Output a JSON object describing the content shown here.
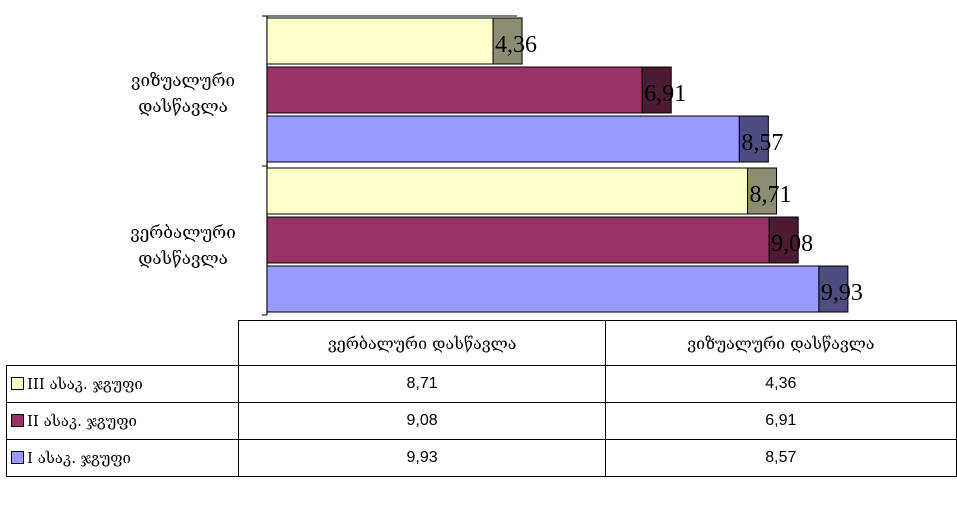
{
  "chart_data": {
    "type": "bar",
    "orientation": "horizontal",
    "categories": [
      "ვიზუალური დასწავლა",
      "ვერბალური დასწავლა"
    ],
    "category_labels": [
      {
        "line1": "ვიზუალური",
        "line2": "დასწავლა"
      },
      {
        "line1": "ვერბალური",
        "line2": "დასწავლა"
      }
    ],
    "series": [
      {
        "name": "III ასაკ. ჯგუფი",
        "values": [
          4.36,
          8.71
        ],
        "labels": [
          "4,36",
          "8,71"
        ],
        "color": "#FFFFCC",
        "side_color": "#8C8C72"
      },
      {
        "name": "II ასაკ. ჯგუფი",
        "values": [
          6.91,
          9.08
        ],
        "labels": [
          "6,91",
          "9,08"
        ],
        "color": "#993366",
        "side_color": "#4D1A33"
      },
      {
        "name": "I ასაკ. ჯგუფი",
        "values": [
          8.57,
          9.93
        ],
        "labels": [
          "8,57",
          "9,93"
        ],
        "color": "#9999FF",
        "side_color": "#4D4D80"
      }
    ],
    "xlim": [
      0,
      10
    ],
    "grid": false,
    "legend": "data-table"
  },
  "table": {
    "headers": [
      "ვერბალური დასწავლა",
      "ვიზუალური დასწავლა"
    ],
    "rows": [
      {
        "label": "III ასაკ. ჯგუფი",
        "color": "#FFFFCC",
        "values": [
          "8,71",
          "4,36"
        ]
      },
      {
        "label": "II ასაკ. ჯგუფი",
        "color": "#993366",
        "values": [
          "9,08",
          "6,91"
        ]
      },
      {
        "label": "I ასაკ. ჯგუფი",
        "color": "#9999FF",
        "values": [
          "9,93",
          "8,57"
        ]
      }
    ]
  }
}
